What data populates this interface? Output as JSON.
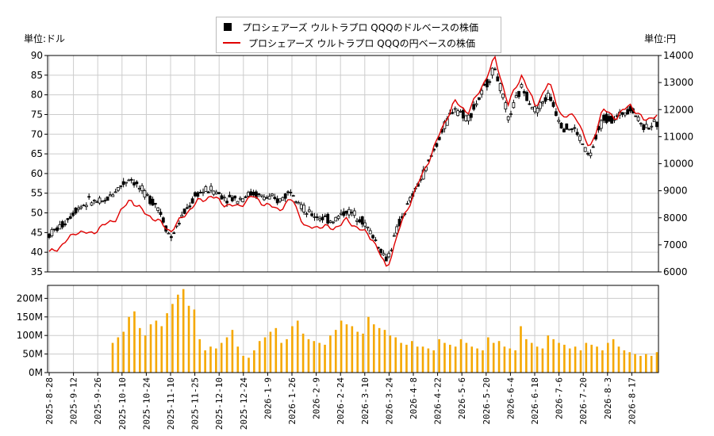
{
  "left_unit": "単位:ドル",
  "right_unit": "単位:円",
  "legend": {
    "usd_label": "プロシェアーズ ウルトラプロ QQQのドルベースの株価",
    "jpy_label": "プロシェアーズ ウルトラプロ QQQの円ベースの株価"
  },
  "colors": {
    "candle": "#000000",
    "jpy_line": "#e00000",
    "volume": "#f5a800",
    "grid": "#cccccc"
  },
  "chart_data": [
    {
      "type": "line",
      "series": [
        {
          "name": "プロシェアーズ ウルトラプロ QQQのドルベースの株価",
          "axis": "left",
          "values": [
            44.5,
            47.0,
            51.0,
            53.0,
            52.5,
            56.0,
            59.0,
            55.0,
            52.0,
            43.5,
            50.0,
            55.0,
            56.0,
            54.0,
            53.5,
            55.0,
            54.0,
            53.0,
            56.0,
            50.0,
            49.0,
            48.0,
            50.5,
            49.0,
            44.0,
            38.0,
            48.0,
            55.0,
            62.0,
            70.0,
            77.0,
            74.0,
            80.0,
            87.0,
            74.0,
            82.0,
            76.0,
            80.0,
            72.0,
            71.0,
            64.0,
            74.0,
            74.0,
            77.0,
            72.0,
            72.5
          ]
        },
        {
          "name": "プロシェアーズ ウルトラプロ QQQの円ベースの株価",
          "axis": "right",
          "values": [
            6700,
            7000,
            7500,
            7400,
            7700,
            8000,
            8700,
            8200,
            7900,
            7500,
            8100,
            8600,
            8800,
            8500,
            8400,
            8800,
            8500,
            8300,
            8700,
            7600,
            7700,
            7600,
            7900,
            7600,
            7200,
            6100,
            7700,
            8900,
            10000,
            11200,
            12300,
            11900,
            12800,
            13900,
            12200,
            13300,
            12100,
            13000,
            11700,
            11800,
            10500,
            12000,
            11700,
            12200,
            11600,
            11800
          ]
        }
      ],
      "ylim_left": [
        35,
        90
      ],
      "ylim_right": [
        6000,
        14000
      ],
      "yticks_left": [
        35,
        40,
        45,
        50,
        55,
        60,
        65,
        70,
        75,
        80,
        85,
        90
      ],
      "yticks_right": [
        6000,
        7000,
        8000,
        9000,
        10000,
        11000,
        12000,
        13000,
        14000
      ],
      "grid": true,
      "legend_position": "top-center"
    },
    {
      "type": "bar",
      "name": "volume",
      "yticks": [
        "0M",
        "50M",
        "100M",
        "150M",
        "200M"
      ],
      "ylim": [
        0,
        235
      ],
      "x_tick_labels": [
        "2025-8-28",
        "2025-9-12",
        "2025-9-26",
        "2025-10-10",
        "2025-10-24",
        "2025-11-10",
        "2025-11-25",
        "2025-12-10",
        "2025-12-24",
        "2026-1-9",
        "2026-1-26",
        "2026-2-9",
        "2026-2-24",
        "2026-3-10",
        "2026-3-24",
        "2026-4-8",
        "2026-4-22",
        "2026-5-6",
        "2026-5-20",
        "2026-6-4",
        "2026-6-18",
        "2026-7-6",
        "2026-7-20",
        "2026-8-3",
        "2026-8-17"
      ],
      "values": [
        80,
        95,
        110,
        150,
        165,
        120,
        100,
        130,
        140,
        125,
        160,
        185,
        210,
        225,
        180,
        170,
        90,
        60,
        70,
        65,
        80,
        95,
        115,
        70,
        45,
        40,
        60,
        85,
        95,
        110,
        120,
        80,
        90,
        125,
        140,
        105,
        90,
        85,
        80,
        75,
        100,
        115,
        140,
        130,
        125,
        110,
        105,
        150,
        130,
        120,
        115,
        100,
        95,
        80,
        75,
        85,
        70,
        70,
        65,
        60,
        90,
        80,
        75,
        70,
        90,
        80,
        70,
        65,
        60,
        95,
        80,
        85,
        70,
        65,
        60,
        125,
        90,
        80,
        70,
        65,
        100,
        90,
        80,
        75,
        65,
        70,
        60,
        80,
        75,
        70,
        60,
        80,
        90,
        70,
        60,
        55,
        50,
        45,
        50,
        45,
        55
      ]
    }
  ]
}
